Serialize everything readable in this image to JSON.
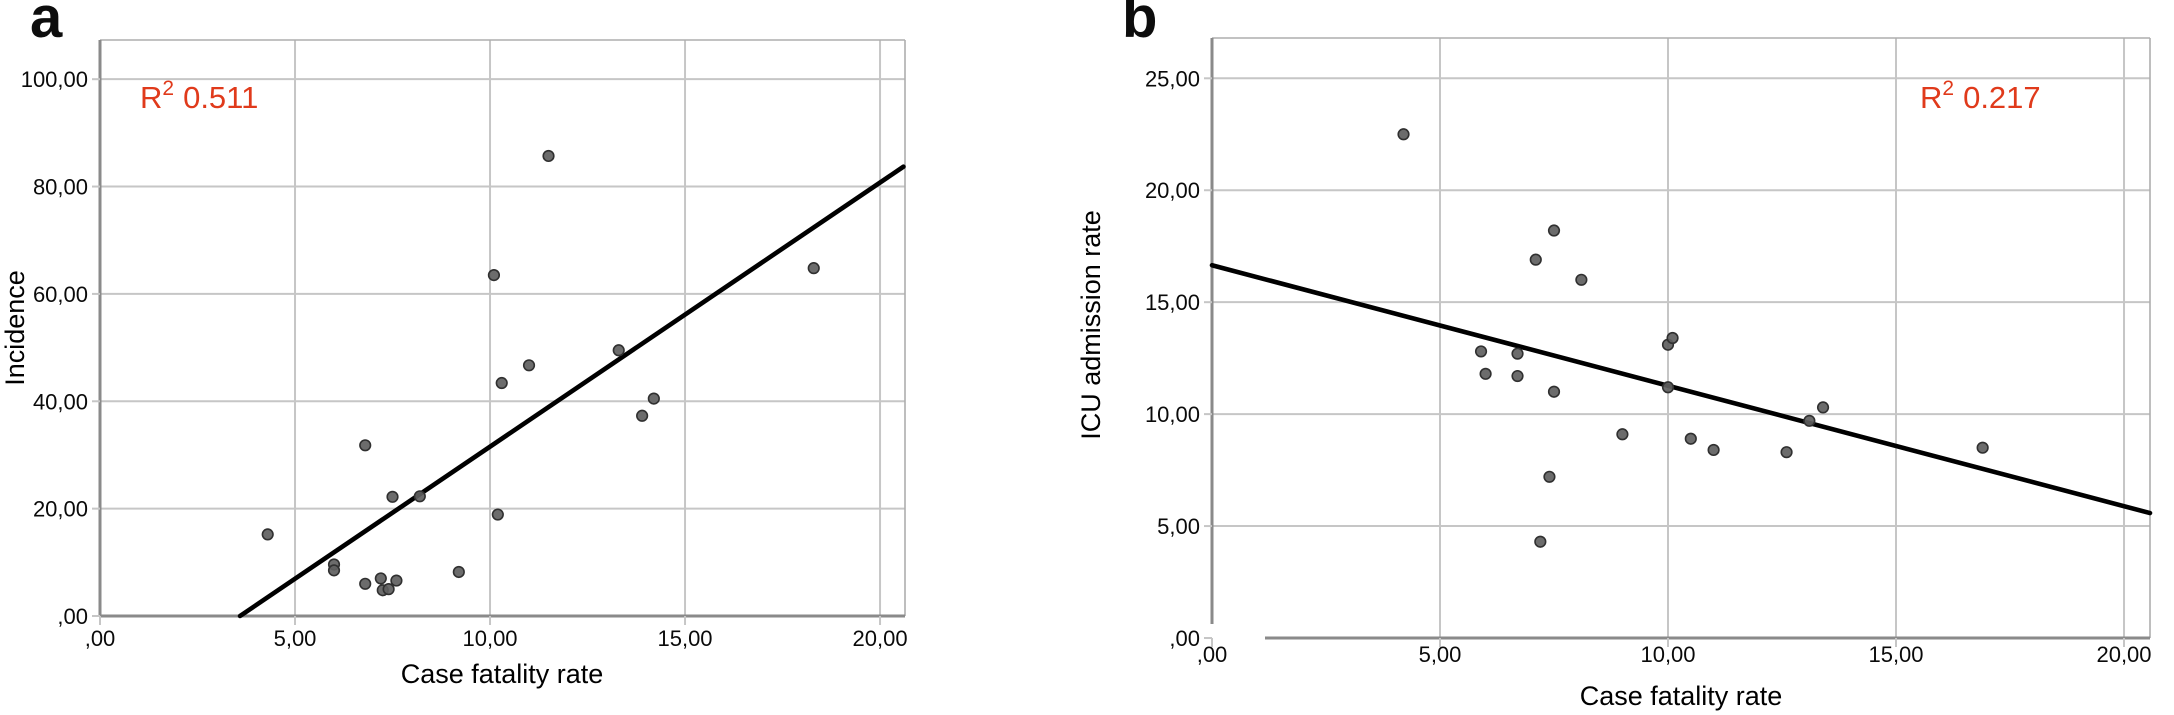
{
  "colors": {
    "r_squared": "#e03a1b",
    "point_fill": "#5f5f5f",
    "point_stroke": "#303030",
    "fit_line": "#000000",
    "gridline": "#c6c6c6",
    "frame": "#aeaeae",
    "axis": "#8a8a8a",
    "text": "#0a0a0a",
    "background": "#ffffff"
  },
  "chart_data": [
    {
      "type": "scatter",
      "panel_label": "a",
      "xlabel": "Case fatality rate",
      "ylabel": "Incidence",
      "r_squared": {
        "base": "R",
        "sup": "2",
        "value": "0.511"
      },
      "r_squared_position": "top-left",
      "grid": true,
      "legend": false,
      "xlim": [
        0,
        20.64
      ],
      "ylim": [
        0,
        107.3
      ],
      "x_ticks": {
        "values": [
          0,
          5,
          10,
          15,
          20
        ],
        "labels": [
          ",00",
          "5,00",
          "10,00",
          "15,00",
          "20,00"
        ]
      },
      "y_ticks": {
        "values": [
          0,
          20,
          40,
          60,
          80,
          100
        ],
        "labels": [
          ",00",
          "20,00",
          "40,00",
          "60,00",
          "80,00",
          "100,00"
        ]
      },
      "points": [
        [
          4.3,
          15.2
        ],
        [
          6.0,
          9.6
        ],
        [
          6.0,
          8.5
        ],
        [
          6.8,
          31.8
        ],
        [
          6.8,
          6.0
        ],
        [
          7.2,
          7.0
        ],
        [
          7.25,
          4.8
        ],
        [
          7.4,
          5.0
        ],
        [
          7.5,
          22.2
        ],
        [
          7.6,
          6.6
        ],
        [
          8.2,
          22.3
        ],
        [
          9.2,
          8.2
        ],
        [
          10.1,
          63.5
        ],
        [
          10.2,
          18.9
        ],
        [
          10.3,
          43.4
        ],
        [
          11.0,
          46.7
        ],
        [
          11.5,
          85.7
        ],
        [
          13.3,
          49.5
        ],
        [
          13.9,
          37.3
        ],
        [
          14.2,
          40.5
        ],
        [
          18.3,
          64.8
        ]
      ],
      "fit_line": {
        "x1": 3.59,
        "y1": 0,
        "x2": 20.6,
        "y2": 83.7
      }
    },
    {
      "type": "scatter",
      "panel_label": "b",
      "xlabel": "Case fatality rate",
      "ylabel": "ICU admission rate",
      "r_squared": {
        "base": "R",
        "sup": "2",
        "value": "0.217"
      },
      "r_squared_position": "top-right",
      "grid": true,
      "legend": false,
      "xlim": [
        0,
        20.57
      ],
      "ylim": [
        0,
        26.8
      ],
      "x_ticks": {
        "values": [
          0,
          5,
          10,
          15,
          20
        ],
        "labels": [
          ",00",
          "5,00",
          "10,00",
          "15,00",
          "20,00"
        ]
      },
      "y_ticks": {
        "values": [
          0,
          5,
          10,
          15,
          20,
          25
        ],
        "labels": [
          ",00",
          "5,00",
          "10,00",
          "15,00",
          "20,00",
          "25,00"
        ]
      },
      "points": [
        [
          4.2,
          22.5
        ],
        [
          5.9,
          12.8
        ],
        [
          6.0,
          11.8
        ],
        [
          6.7,
          12.7
        ],
        [
          6.7,
          11.7
        ],
        [
          7.1,
          16.9
        ],
        [
          7.2,
          4.3
        ],
        [
          7.4,
          7.2
        ],
        [
          7.5,
          18.2
        ],
        [
          7.5,
          11.0
        ],
        [
          8.1,
          16.0
        ],
        [
          9.0,
          9.1
        ],
        [
          10.0,
          13.1
        ],
        [
          10.1,
          13.4
        ],
        [
          10.0,
          11.2
        ],
        [
          10.5,
          8.9
        ],
        [
          11.0,
          8.4
        ],
        [
          12.6,
          8.3
        ],
        [
          13.1,
          9.7
        ],
        [
          13.4,
          10.3
        ],
        [
          16.9,
          8.5
        ]
      ],
      "fit_line": {
        "x1": 0,
        "y1": 16.65,
        "x2": 20.57,
        "y2": 5.58
      }
    }
  ]
}
